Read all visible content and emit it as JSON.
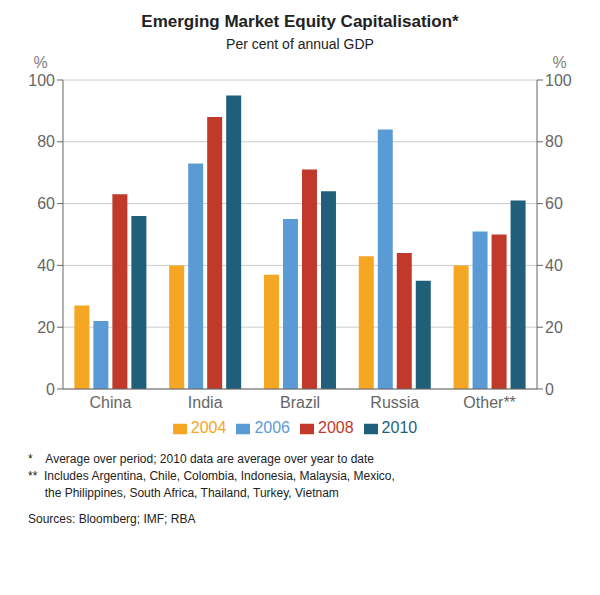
{
  "chart_data": {
    "type": "bar",
    "title": "Emerging Market Equity Capitalisation*",
    "subtitle": "Per cent of annual GDP",
    "categories": [
      "China",
      "India",
      "Brazil",
      "Russia",
      "Other**"
    ],
    "series": [
      {
        "name": "2004",
        "color": "#F5A623",
        "values": [
          27,
          40,
          37,
          43,
          40
        ]
      },
      {
        "name": "2006",
        "color": "#5B9BD5",
        "values": [
          22,
          73,
          55,
          84,
          51
        ]
      },
      {
        "name": "2008",
        "color": "#C0392B",
        "values": [
          63,
          88,
          71,
          44,
          50
        ]
      },
      {
        "name": "2010",
        "color": "#1F5F7A",
        "values": [
          56,
          95,
          64,
          35,
          61
        ]
      }
    ],
    "ylabel": "%",
    "ylim": [
      0,
      100
    ],
    "yticks": [
      0,
      20,
      40,
      60,
      80,
      100
    ],
    "y2label": "%",
    "y2lim": [
      0,
      100
    ],
    "y2ticks": [
      0,
      20,
      40,
      60,
      80,
      100
    ],
    "grid": true,
    "legend": "bottom",
    "annotations": [
      "*    Average over period; 2010 data are average over year to date",
      "**  Includes Argentina, Chile, Colombia, Indonesia, Malaysia, Mexico,",
      "     the Philippines, South Africa, Thailand, Turkey, Vietnam",
      "Sources: Bloomberg; IMF; RBA"
    ]
  }
}
